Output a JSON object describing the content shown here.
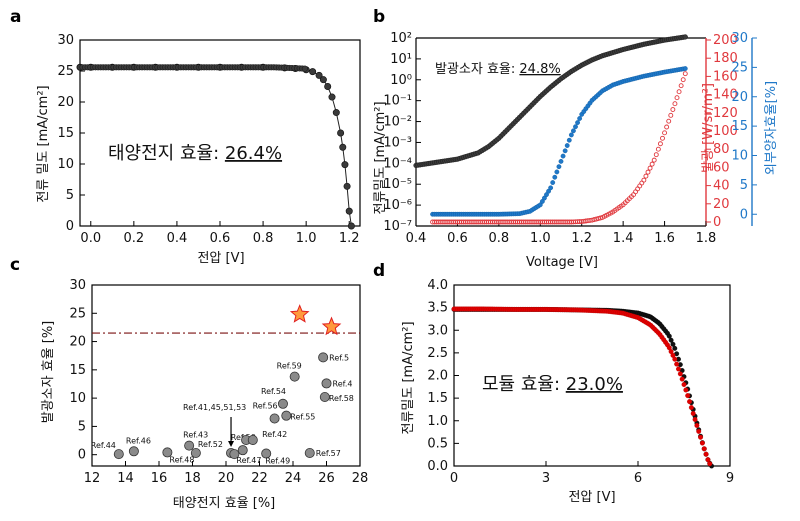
{
  "colors": {
    "black_series": "#3a3a3a",
    "red_series": "#e0393e",
    "blue_series": "#1f78c8",
    "red_axis": "#e0393e",
    "blue_axis": "#1f78c8",
    "reference_line": "#7a1010",
    "point_gray": "#8a8a8a",
    "star_fill": "#ff9a3c",
    "star_stroke": "#e02020",
    "module_red": "#e00000",
    "module_black": "#111111"
  },
  "chart_data": [
    {
      "panel": "a",
      "type": "line",
      "ylabel": "전류 밀도 [mA/cm²]",
      "xlabel": "전압 [V]",
      "xlim": [
        -0.05,
        1.25
      ],
      "ylim": [
        0,
        30
      ],
      "xticks": [
        0.0,
        0.2,
        0.4,
        0.6,
        0.8,
        1.0,
        1.2
      ],
      "xtick_labels": [
        "0.0",
        "0.2",
        "0.4",
        "0.6",
        "0.8",
        "1.0",
        "1.2"
      ],
      "yticks": [
        0,
        5,
        10,
        15,
        20,
        25,
        30
      ],
      "annotation_prefix": "태양전지 효율: ",
      "annotation_value": "26.4%",
      "series": [
        {
          "x": [
            -0.05,
            0.0,
            0.1,
            0.2,
            0.3,
            0.4,
            0.5,
            0.6,
            0.7,
            0.8,
            0.9,
            0.95,
            1.0,
            1.03,
            1.06,
            1.08,
            1.1,
            1.12,
            1.14,
            1.16,
            1.17,
            1.18,
            1.19,
            1.2,
            1.21
          ],
          "y": [
            25.6,
            25.6,
            25.6,
            25.6,
            25.6,
            25.6,
            25.6,
            25.6,
            25.6,
            25.6,
            25.5,
            25.4,
            25.2,
            24.9,
            24.3,
            23.6,
            22.5,
            20.8,
            18.3,
            15.0,
            12.7,
            9.9,
            6.4,
            2.4,
            0.0
          ]
        }
      ]
    },
    {
      "panel": "b",
      "type": "line",
      "xlabel": "Voltage [V]",
      "ylabel_left": "전류밀도 [mA/cm²]",
      "ylabel_right1": "발광 [W/sr/m²]",
      "ylabel_right2": "외부양자효율[%]",
      "xlim": [
        0.4,
        1.8
      ],
      "xticks": [
        0.4,
        0.6,
        0.8,
        1.0,
        1.2,
        1.4,
        1.6,
        1.8
      ],
      "xtick_labels": [
        "0.4",
        "0.6",
        "0.8",
        "1.0",
        "1.2",
        "1.4",
        "1.6",
        "1.8"
      ],
      "ylim_left_log10": [
        -7,
        2
      ],
      "ytick_labels_left": [
        "10²",
        "10¹",
        "10⁰",
        "10⁻¹",
        "10⁻²",
        "10⁻³",
        "10⁻⁴",
        "10⁻⁵",
        "10⁻⁶",
        "10⁻⁷"
      ],
      "ylim_right1": [
        0,
        200
      ],
      "yticks_right1": [
        0,
        20,
        40,
        60,
        80,
        100,
        120,
        140,
        160,
        180,
        200
      ],
      "ylim_right2": [
        -2,
        30
      ],
      "yticks_right2": [
        0,
        5,
        10,
        15,
        20,
        25,
        30
      ],
      "annotation_prefix": "발광소자 효율: ",
      "annotation_value": "24.8%",
      "series": [
        {
          "axis": "left",
          "x": [
            0.4,
            0.5,
            0.6,
            0.7,
            0.75,
            0.8,
            0.85,
            0.9,
            0.95,
            1.0,
            1.05,
            1.1,
            1.15,
            1.2,
            1.25,
            1.3,
            1.35,
            1.4,
            1.5,
            1.6,
            1.7
          ],
          "log10_y": [
            -4.1,
            -3.95,
            -3.8,
            -3.5,
            -3.2,
            -2.8,
            -2.3,
            -1.8,
            -1.3,
            -0.8,
            -0.35,
            0.05,
            0.4,
            0.7,
            0.95,
            1.15,
            1.3,
            1.45,
            1.7,
            1.9,
            2.05
          ]
        },
        {
          "axis": "right1",
          "x": [
            0.48,
            0.6,
            0.7,
            0.8,
            0.9,
            1.0,
            1.1,
            1.15,
            1.2,
            1.25,
            1.3,
            1.35,
            1.4,
            1.45,
            1.5,
            1.55,
            1.6,
            1.65,
            1.7
          ],
          "y": [
            0,
            0,
            0,
            0,
            0,
            0,
            0,
            0,
            0.5,
            2,
            5,
            11,
            19,
            30,
            46,
            68,
            98,
            130,
            163
          ]
        },
        {
          "axis": "right2",
          "x": [
            0.48,
            0.6,
            0.7,
            0.8,
            0.9,
            0.95,
            1.0,
            1.05,
            1.1,
            1.15,
            1.2,
            1.25,
            1.3,
            1.35,
            1.4,
            1.5,
            1.6,
            1.7
          ],
          "y": [
            0.0,
            0.0,
            0.0,
            0.0,
            0.1,
            0.5,
            1.6,
            4.5,
            9.0,
            13.5,
            17.0,
            19.4,
            21.0,
            22.0,
            22.6,
            23.5,
            24.2,
            24.8
          ]
        }
      ]
    },
    {
      "panel": "c",
      "type": "scatter",
      "xlabel": "태양전지 효율 [%]",
      "ylabel": "발광소자 효율 [%]",
      "xlim": [
        12,
        28
      ],
      "ylim": [
        -2,
        30
      ],
      "xticks": [
        12,
        14,
        16,
        18,
        20,
        22,
        24,
        26,
        28
      ],
      "yticks": [
        0,
        5,
        10,
        15,
        20,
        25,
        30
      ],
      "reference_line_y": 21.5,
      "points": [
        {
          "x": 13.6,
          "y": 0.1,
          "label": "Ref.44"
        },
        {
          "x": 14.5,
          "y": 0.6,
          "label": "Ref.46"
        },
        {
          "x": 16.5,
          "y": 0.4,
          "label": "Ref.48"
        },
        {
          "x": 17.8,
          "y": 1.6,
          "label": "Ref.43"
        },
        {
          "x": 18.2,
          "y": 0.3,
          "label": "Ref.52"
        },
        {
          "x": 20.3,
          "y": 0.3,
          "label": "Ref.41,45,51,53"
        },
        {
          "x": 20.5,
          "y": 0.1,
          "label": "Ref.47"
        },
        {
          "x": 21.0,
          "y": 0.8,
          "label": "Ref.50"
        },
        {
          "x": 21.2,
          "y": 2.6,
          "label": "Ref.42"
        },
        {
          "x": 21.6,
          "y": 2.6,
          "label": ""
        },
        {
          "x": 22.4,
          "y": 0.2,
          "label": "Ref.49"
        },
        {
          "x": 22.9,
          "y": 6.4,
          "label": "Ref.56"
        },
        {
          "x": 23.4,
          "y": 9.0,
          "label": "Ref.54"
        },
        {
          "x": 23.6,
          "y": 6.9,
          "label": "Ref.55"
        },
        {
          "x": 24.1,
          "y": 13.8,
          "label": "Ref.59"
        },
        {
          "x": 25.0,
          "y": 0.3,
          "label": "Ref.57"
        },
        {
          "x": 25.8,
          "y": 17.2,
          "label": "Ref.5"
        },
        {
          "x": 25.9,
          "y": 10.2,
          "label": "Ref.58"
        },
        {
          "x": 26.0,
          "y": 12.6,
          "label": "Ref.4"
        }
      ],
      "stars": [
        {
          "x": 24.4,
          "y": 24.8
        },
        {
          "x": 26.3,
          "y": 22.6
        }
      ]
    },
    {
      "panel": "d",
      "type": "line",
      "ylabel": "전류밀도 [mA/cm²]",
      "xlabel": "전압 [V]",
      "xlim": [
        0,
        9
      ],
      "ylim": [
        0,
        4.0
      ],
      "xticks": [
        0,
        3,
        6,
        9
      ],
      "yticks": [
        0.0,
        0.5,
        1.0,
        1.5,
        2.0,
        2.5,
        3.0,
        3.5,
        4.0
      ],
      "ytick_labels": [
        "0.0",
        "0.5",
        "1.0",
        "1.5",
        "2.0",
        "2.5",
        "3.0",
        "3.5",
        "4.0"
      ],
      "annotation_prefix": "모듈 효율: ",
      "annotation_value": "23.0%",
      "series": [
        {
          "color": "black",
          "x": [
            0,
            1,
            2,
            3,
            4,
            5,
            5.5,
            6.0,
            6.4,
            6.7,
            7.0,
            7.2,
            7.4,
            7.6,
            7.8,
            8.0,
            8.15,
            8.3,
            8.4
          ],
          "y": [
            3.46,
            3.46,
            3.46,
            3.46,
            3.45,
            3.44,
            3.42,
            3.38,
            3.3,
            3.15,
            2.9,
            2.6,
            2.2,
            1.75,
            1.25,
            0.75,
            0.4,
            0.1,
            0.0
          ]
        },
        {
          "color": "red",
          "x": [
            0,
            1,
            2,
            3,
            4,
            5,
            5.5,
            6.0,
            6.4,
            6.7,
            7.0,
            7.2,
            7.4,
            7.6,
            7.8,
            8.0,
            8.15,
            8.3,
            8.38
          ],
          "y": [
            3.47,
            3.47,
            3.46,
            3.46,
            3.45,
            3.42,
            3.38,
            3.28,
            3.12,
            2.92,
            2.64,
            2.36,
            2.0,
            1.6,
            1.16,
            0.72,
            0.4,
            0.1,
            0.0
          ]
        }
      ]
    }
  ],
  "panels": {
    "a": {
      "letter": "a"
    },
    "b": {
      "letter": "b"
    },
    "c": {
      "letter": "c"
    },
    "d": {
      "letter": "d"
    }
  }
}
